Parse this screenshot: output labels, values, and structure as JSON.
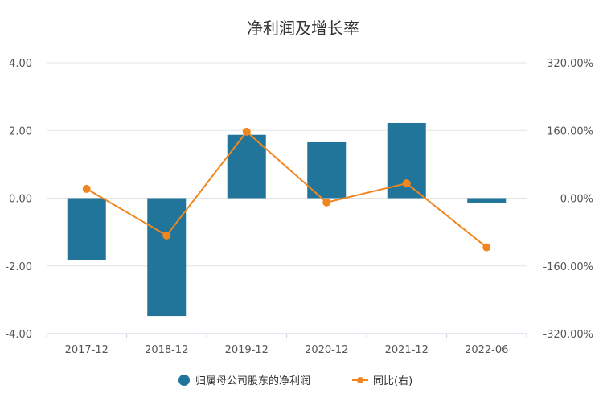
{
  "chart_data": {
    "type": "bar",
    "title": "净利润及增长率",
    "categories": [
      "2017-12",
      "2018-12",
      "2019-12",
      "2020-12",
      "2021-12",
      "2022-06"
    ],
    "left_axis": {
      "ylim": [
        -4,
        4
      ],
      "ticks": [
        "-4.00",
        "-2.00",
        "0.00",
        "2.00",
        "4.00"
      ]
    },
    "right_axis": {
      "ylim": [
        -320,
        320
      ],
      "ticks": [
        "-320.00%",
        "-160.00%",
        "0.00%",
        "160.00%",
        "320.00%"
      ]
    },
    "series": [
      {
        "name": "归属母公司股东的净利润",
        "type": "bar",
        "axis": "left",
        "color": "#21759b",
        "values": [
          -1.84,
          -3.48,
          1.87,
          1.65,
          2.22,
          -0.13
        ]
      },
      {
        "name": "同比(右)",
        "type": "line",
        "axis": "right",
        "color": "#f0861f",
        "values": [
          22,
          -88,
          157,
          -10,
          35,
          -116
        ]
      }
    ],
    "grid": true,
    "legend_position": "bottom"
  }
}
